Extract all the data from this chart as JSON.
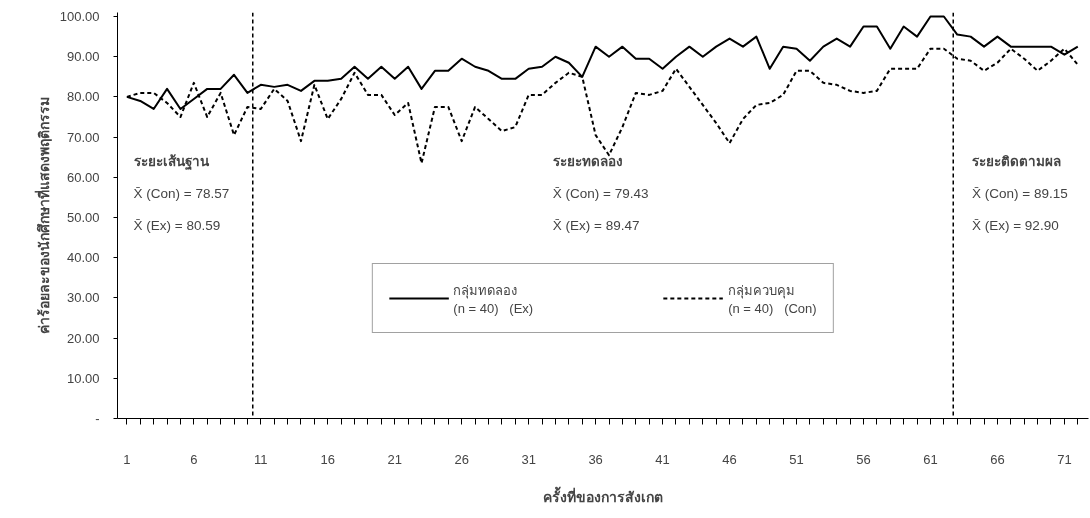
{
  "chart_data": {
    "type": "line",
    "xlabel": "ครั้งที่ของการสังเกต",
    "ylabel": "ค่าร้อยละของนักศึกษาที่แสดงพฤติกรรม",
    "x": [
      1,
      2,
      3,
      4,
      5,
      6,
      7,
      8,
      9,
      10,
      11,
      12,
      13,
      14,
      15,
      16,
      17,
      18,
      19,
      20,
      21,
      22,
      23,
      24,
      25,
      26,
      27,
      28,
      29,
      30,
      31,
      32,
      33,
      34,
      35,
      36,
      37,
      38,
      39,
      40,
      41,
      42,
      43,
      44,
      45,
      46,
      47,
      48,
      49,
      50,
      51,
      52,
      53,
      54,
      55,
      56,
      57,
      58,
      59,
      60,
      61,
      62,
      63,
      64,
      65,
      66,
      67,
      68,
      69,
      70,
      71,
      72
    ],
    "series": [
      {
        "name": "กลุ่มทดลอง\n(n = 40)   (Ex)",
        "color": "#000000",
        "line_style": "solid",
        "values": [
          80,
          79,
          77,
          82,
          77,
          79.5,
          82,
          82,
          85.5,
          81,
          83,
          82.5,
          83,
          81.5,
          84,
          84,
          84.5,
          87.5,
          84.5,
          87.5,
          84.5,
          87.5,
          82,
          86.5,
          86.5,
          89.5,
          87.5,
          86.5,
          84.5,
          84.5,
          87,
          87.5,
          90,
          88.5,
          85,
          92.5,
          90,
          92.5,
          89.5,
          89.5,
          87,
          90,
          92.5,
          90,
          92.5,
          94.5,
          92.5,
          95,
          87,
          92.5,
          92,
          89,
          92.5,
          94.5,
          92.5,
          97.5,
          97.5,
          92,
          97.5,
          95,
          100,
          100,
          95.5,
          95,
          92.5,
          95,
          92.5,
          92.5,
          92.5,
          92.5,
          90.5,
          92.5
        ]
      },
      {
        "name": "กลุ่มควบคุม\n(n = 40)   (Con)",
        "color": "#000000",
        "line_style": "dashed",
        "values": [
          80,
          81,
          81,
          78.5,
          75,
          83.5,
          75,
          81,
          70.5,
          77.5,
          77,
          82,
          79,
          69,
          83,
          74.5,
          79.5,
          86,
          80.5,
          80.5,
          75.5,
          78.5,
          63.5,
          77.5,
          77.5,
          69,
          77.5,
          74.5,
          71.5,
          72.5,
          80.5,
          80.5,
          83.5,
          86,
          85,
          70.5,
          65.5,
          72.5,
          81,
          80.5,
          81.5,
          87,
          82.5,
          78,
          73.5,
          68.5,
          74.5,
          78,
          78.5,
          80.5,
          86.5,
          86.5,
          83.5,
          83,
          81.5,
          81,
          81.5,
          87,
          87,
          87,
          92,
          92,
          89.5,
          89,
          86.5,
          88.5,
          92,
          89.5,
          86.5,
          89,
          92,
          88
        ]
      }
    ],
    "xlim": [
      0.3,
      72.8
    ],
    "ylim": [
      0,
      101
    ],
    "xticks": [
      1,
      {
        "value": 2,
        "label": null
      },
      {
        "value": 3,
        "label": null
      },
      {
        "value": 4,
        "label": null
      },
      {
        "value": 5,
        "label": null
      },
      6,
      {
        "value": 7,
        "label": null
      },
      {
        "value": 8,
        "label": null
      },
      {
        "value": 9,
        "label": null
      },
      {
        "value": 10,
        "label": null
      },
      11,
      {
        "value": 12,
        "label": null
      },
      {
        "value": 13,
        "label": null
      },
      {
        "value": 14,
        "label": null
      },
      {
        "value": 15,
        "label": null
      },
      16,
      {
        "value": 17,
        "label": null
      },
      {
        "value": 18,
        "label": null
      },
      {
        "value": 19,
        "label": null
      },
      {
        "value": 20,
        "label": null
      },
      21,
      {
        "value": 22,
        "label": null
      },
      {
        "value": 23,
        "label": null
      },
      {
        "value": 24,
        "label": null
      },
      {
        "value": 25,
        "label": null
      },
      26,
      {
        "value": 27,
        "label": null
      },
      {
        "value": 28,
        "label": null
      },
      {
        "value": 29,
        "label": null
      },
      {
        "value": 30,
        "label": null
      },
      31,
      {
        "value": 32,
        "label": null
      },
      {
        "value": 33,
        "label": null
      },
      {
        "value": 34,
        "label": null
      },
      {
        "value": 35,
        "label": null
      },
      36,
      {
        "value": 37,
        "label": null
      },
      {
        "value": 38,
        "label": null
      },
      {
        "value": 39,
        "label": null
      },
      {
        "value": 40,
        "label": null
      },
      41,
      {
        "value": 42,
        "label": null
      },
      {
        "value": 43,
        "label": null
      },
      {
        "value": 44,
        "label": null
      },
      {
        "value": 45,
        "label": null
      },
      46,
      {
        "value": 47,
        "label": null
      },
      {
        "value": 48,
        "label": null
      },
      {
        "value": 49,
        "label": null
      },
      {
        "value": 50,
        "label": null
      },
      51,
      {
        "value": 52,
        "label": null
      },
      {
        "value": 53,
        "label": null
      },
      {
        "value": 54,
        "label": null
      },
      {
        "value": 55,
        "label": null
      },
      56,
      {
        "value": 57,
        "label": null
      },
      {
        "value": 58,
        "label": null
      },
      {
        "value": 59,
        "label": null
      },
      {
        "value": 60,
        "label": null
      },
      61,
      {
        "value": 62,
        "label": null
      },
      {
        "value": 63,
        "label": null
      },
      {
        "value": 64,
        "label": null
      },
      {
        "value": 65,
        "label": null
      },
      66,
      {
        "value": 67,
        "label": null
      },
      {
        "value": 68,
        "label": null
      },
      {
        "value": 69,
        "label": null
      },
      {
        "value": 70,
        "label": null
      },
      71,
      {
        "value": 72,
        "label": null
      }
    ],
    "yticks": [
      {
        "value": 0,
        "label": "-"
      },
      {
        "value": 10,
        "label": "10.00"
      },
      {
        "value": 20,
        "label": "20.00"
      },
      {
        "value": 30,
        "label": "30.00"
      },
      {
        "value": 40,
        "label": "40.00"
      },
      {
        "value": 50,
        "label": "50.00"
      },
      {
        "value": 60,
        "label": "60.00"
      },
      {
        "value": 70,
        "label": "70.00"
      },
      {
        "value": 80,
        "label": "80.00"
      },
      {
        "value": 90,
        "label": "90.00"
      },
      {
        "value": 100,
        "label": "100.00"
      }
    ],
    "ref_lines": [
      {
        "axis": "x",
        "value": 10.4,
        "color": "#000000",
        "line_style": "dashed"
      },
      {
        "axis": "x",
        "value": 62.7,
        "color": "#000000",
        "line_style": "dashed"
      }
    ],
    "annotations": [
      "ระยะเส้นฐาน",
      "X̄ (Con) = 78.57",
      "X̄ (Ex)  =  80.59",
      "ระยะทดลอง",
      "X̄ (Con) = 79.43",
      "X̄ (Ex)  =  89.47",
      "ระยะติดตามผล",
      "X̄ (Con) = 89.15",
      "X̄ (Ex)  =  92.90"
    ],
    "grid": false,
    "legend": "bottom",
    "marker": "none"
  }
}
